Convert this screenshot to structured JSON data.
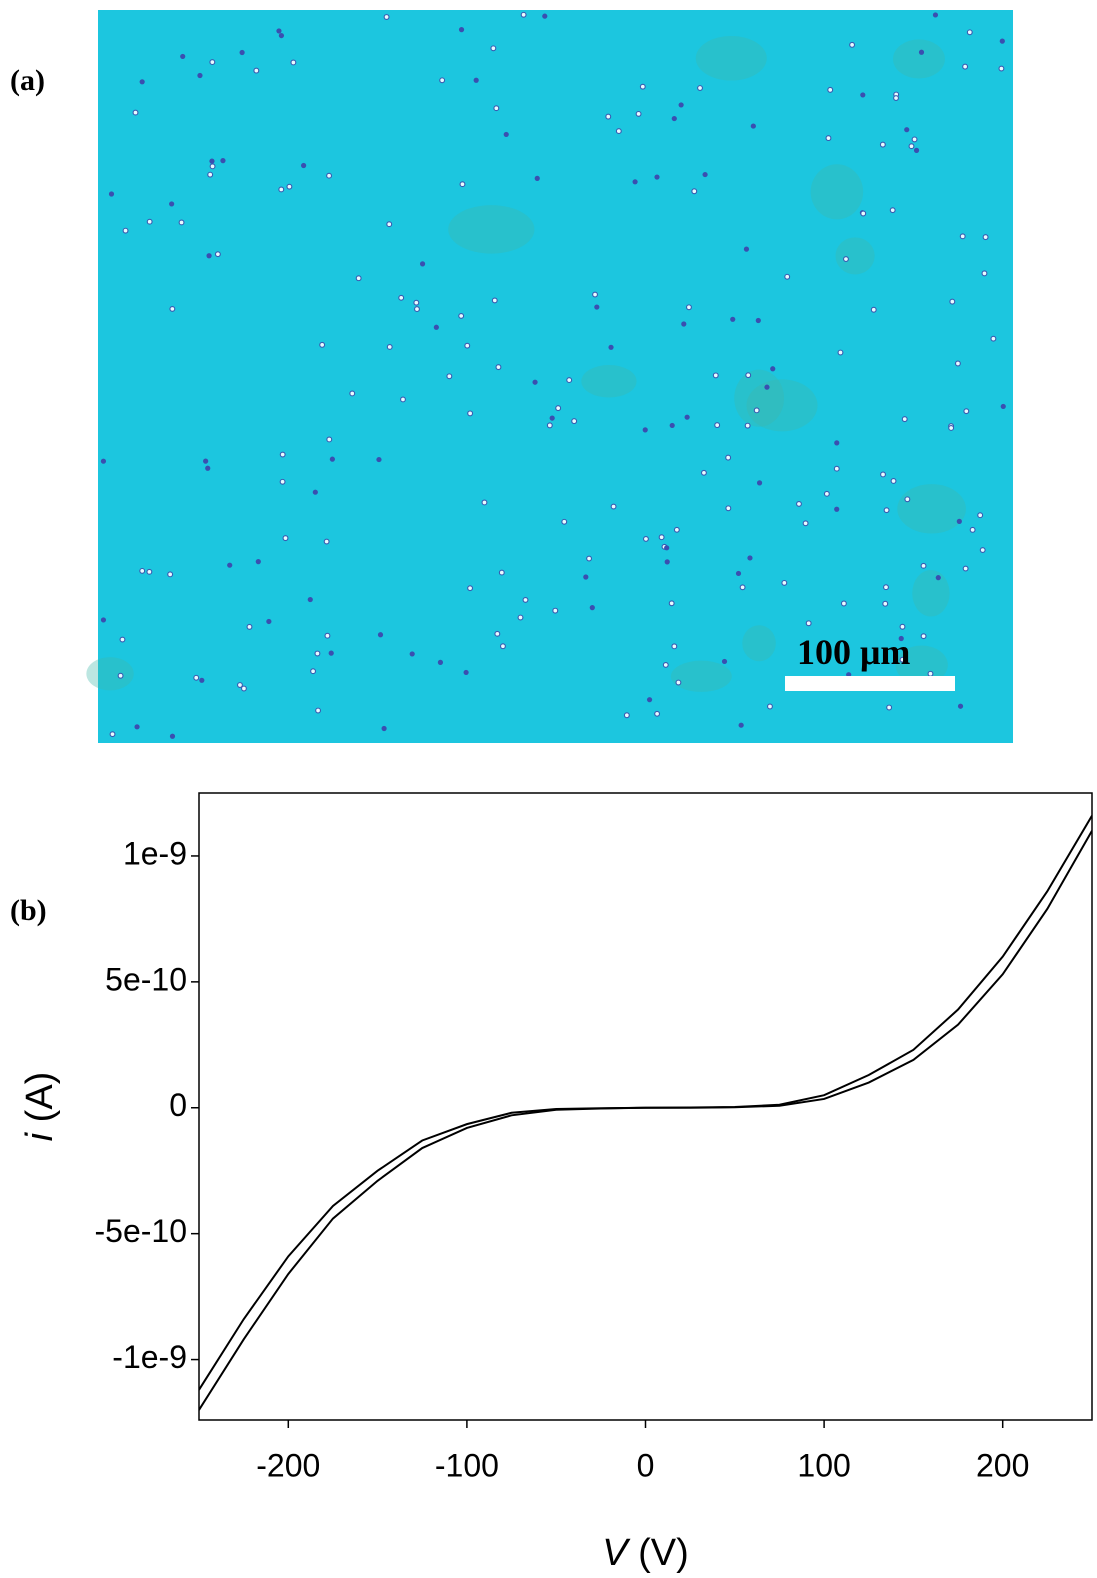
{
  "figure": {
    "panel_a": {
      "label": "(a)",
      "scale_bar": "100 μm"
    },
    "panel_b": {
      "label": "(b)"
    }
  },
  "chart_data": {
    "type": "line",
    "x_label": "V (V)",
    "y_label": "i (A)",
    "x": [
      -250,
      -225,
      -200,
      -175,
      -150,
      -125,
      -100,
      -75,
      -50,
      -25,
      0,
      25,
      50,
      75,
      100,
      125,
      150,
      175,
      200,
      225,
      250
    ],
    "series": [
      {
        "color": "#000000",
        "values": [
          -1.12e-09,
          -8.4e-10,
          -5.9e-10,
          -3.9e-10,
          -2.5e-10,
          -1.3e-10,
          -6.5e-11,
          -2e-11,
          -5e-12,
          -2e-12,
          0,
          1e-12,
          3e-12,
          1.2e-11,
          5e-11,
          1.3e-10,
          2.3e-10,
          3.9e-10,
          6e-10,
          8.6e-10,
          1.16e-09
        ]
      },
      {
        "color": "#000000",
        "values": [
          -1.2e-09,
          -9.2e-10,
          -6.6e-10,
          -4.4e-10,
          -2.9e-10,
          -1.6e-10,
          -8e-11,
          -3e-11,
          -8e-12,
          -3e-12,
          0,
          0,
          2e-12,
          8e-12,
          3.5e-11,
          1e-10,
          1.9e-10,
          3.3e-10,
          5.3e-10,
          7.9e-10,
          1.1e-09
        ]
      }
    ],
    "xlim": [
      -250,
      250
    ],
    "xticks": [
      -200,
      -100,
      0,
      100,
      200
    ],
    "ylim": [
      -1.24e-09,
      1.25e-09
    ],
    "yticks": [
      -1e-09,
      -5e-10,
      0,
      5e-10,
      1e-09
    ]
  }
}
